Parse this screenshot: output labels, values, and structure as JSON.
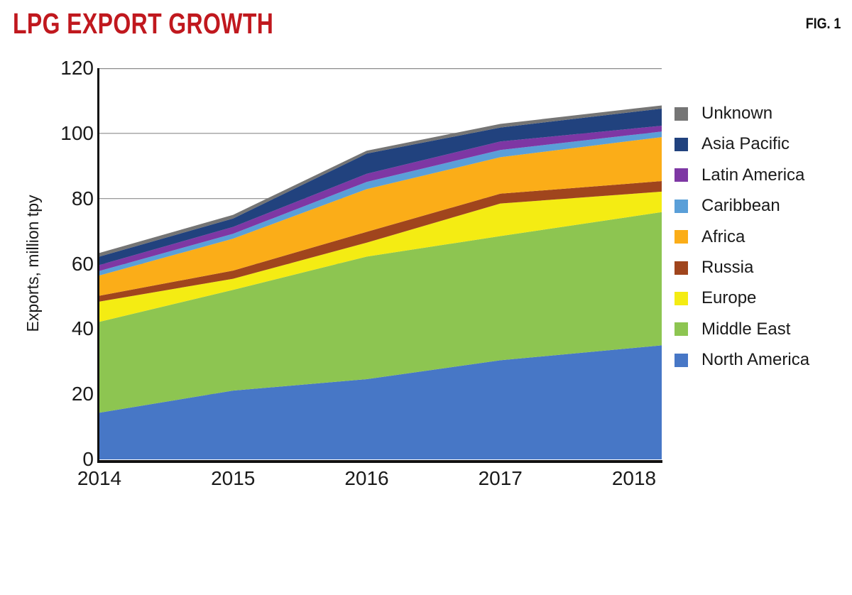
{
  "header": {
    "title": "LPG EXPORT GROWTH",
    "fig_label": "FIG. 1"
  },
  "colors": {
    "title_red": "#C0181E",
    "text": "#1A1A1A",
    "grid": "#8C8C8C",
    "axis": "#111111"
  },
  "chart_data": {
    "type": "area",
    "stacked": true,
    "title": "LPG EXPORT GROWTH",
    "xlabel": "",
    "ylabel": "Exports, million tpy",
    "ylim": [
      0,
      120
    ],
    "ytick_interval": 20,
    "ytick_labels": [
      "0",
      "20",
      "40",
      "60",
      "80",
      "100",
      "120"
    ],
    "grid": "horizontal-only",
    "legend_position": "right",
    "legend_order_top_to_bottom": [
      "Unknown",
      "Asia Pacific",
      "Latin America",
      "Caribbean",
      "Africa",
      "Russia",
      "Europe",
      "Middle East",
      "North America"
    ],
    "categories": [
      "2014",
      "2015",
      "2016",
      "2017",
      "2018"
    ],
    "series_note": "series listed bottom-to-top of the stack; values in million tpy; area extends slightly past the 2018 tick to the plot edge (linear extrapolation)",
    "series": [
      {
        "name": "North America",
        "color": "#4777C6",
        "values": [
          14.3,
          21.1,
          24.6,
          30.4,
          34.2
        ]
      },
      {
        "name": "Middle East",
        "color": "#8DC551",
        "values": [
          27.9,
          30.9,
          37.6,
          38.1,
          40.4
        ]
      },
      {
        "name": "Europe",
        "color": "#F4EC13",
        "values": [
          6.2,
          3.4,
          4.3,
          10.0,
          6.9
        ]
      },
      {
        "name": "Russia",
        "color": "#A0451D",
        "values": [
          1.8,
          2.5,
          3.3,
          3.0,
          3.2
        ]
      },
      {
        "name": "Africa",
        "color": "#FBAD18",
        "values": [
          6.2,
          9.8,
          13.1,
          11.2,
          13.1
        ]
      },
      {
        "name": "Caribbean",
        "color": "#5A9FD8",
        "values": [
          1.4,
          1.5,
          2.2,
          2.2,
          1.8
        ]
      },
      {
        "name": "Latin America",
        "color": "#7E37A4",
        "values": [
          1.8,
          2.1,
          2.5,
          2.6,
          1.9
        ]
      },
      {
        "name": "Asia Pacific",
        "color": "#21427E",
        "values": [
          2.6,
          2.6,
          6.2,
          4.3,
          5.1
        ]
      },
      {
        "name": "Unknown",
        "color": "#757575",
        "values": [
          1.1,
          1.1,
          0.9,
          1.1,
          1.0
        ]
      }
    ],
    "totals_by_year": [
      63.3,
      75.0,
      94.7,
      102.9,
      107.6
    ]
  }
}
